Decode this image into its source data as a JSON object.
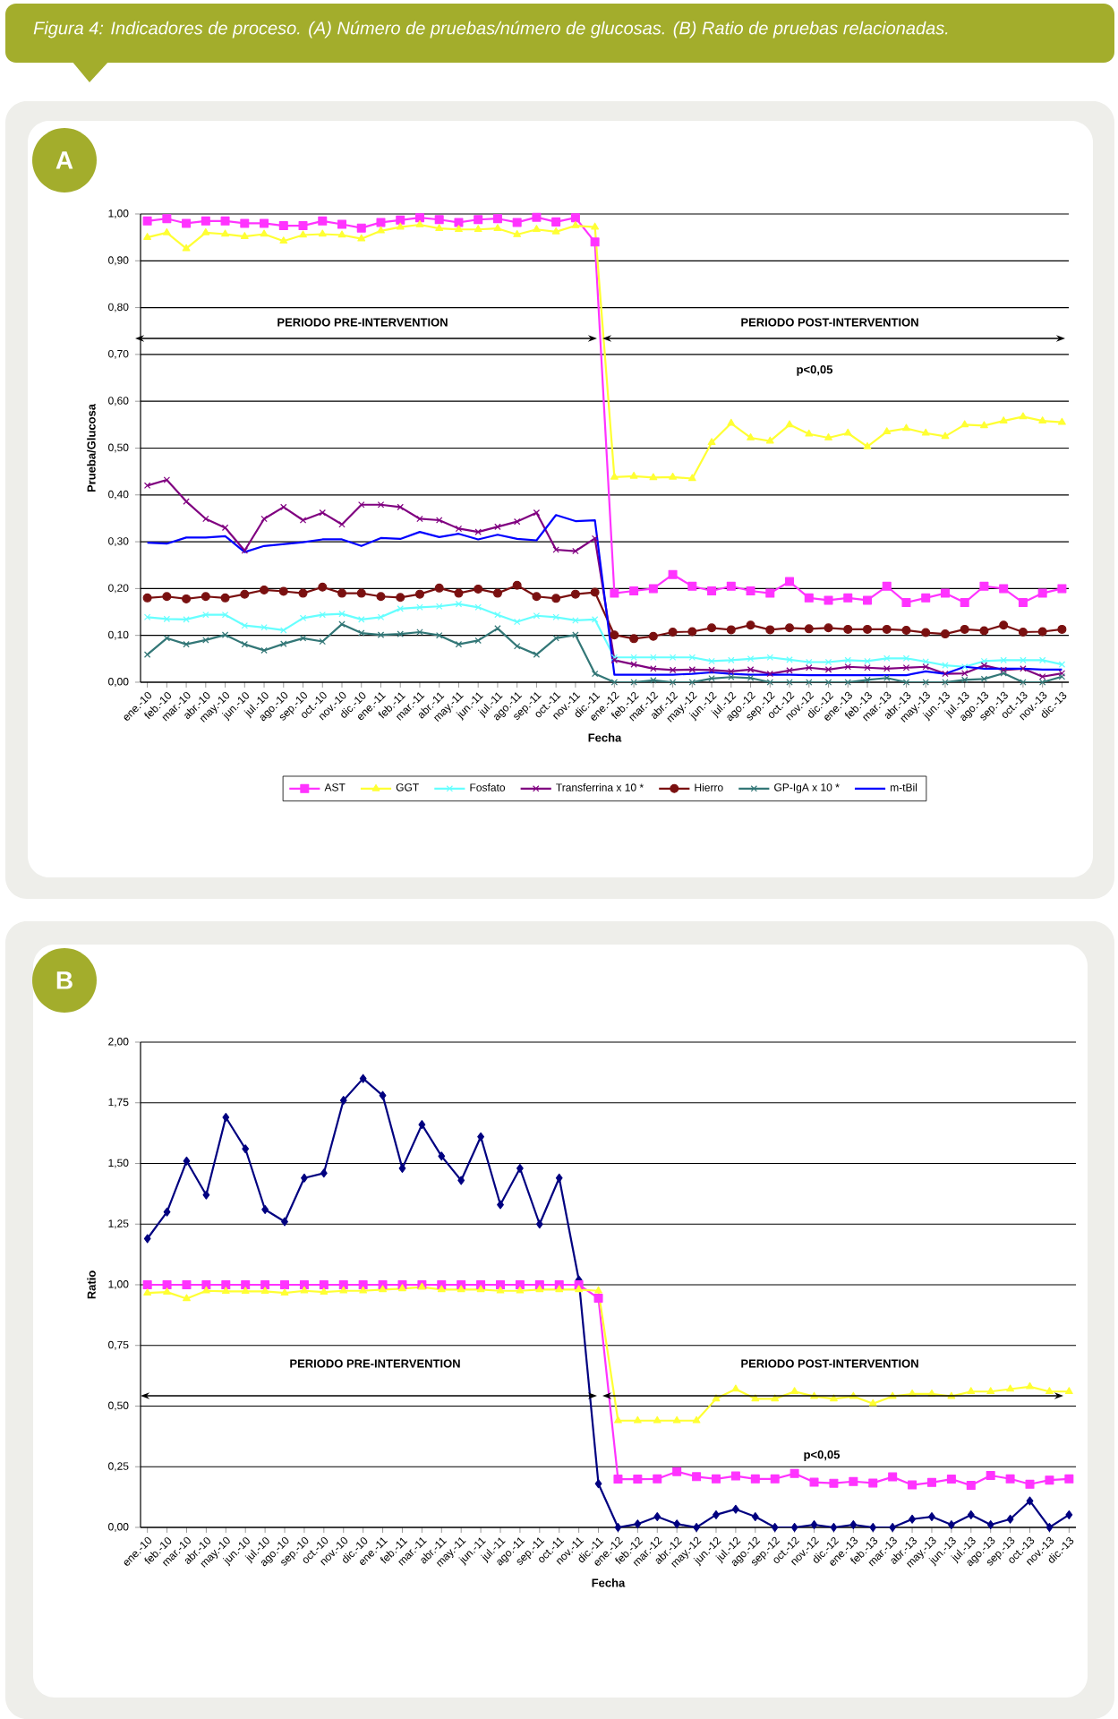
{
  "chart_data": [
    {
      "type": "line",
      "title": "A",
      "xlabel": "Fecha",
      "ylabel": "Prueba/Glucosa",
      "annotations": [
        "Figura 4: Indicadores de proceso. (A) Número de pruebas/número de glucosas. (B) Ratio de pruebas relacionadas.",
        "PERIODO PRE-INTERVENTION",
        "PERIODO POST-INTERVENTION",
        "p<0,05"
      ],
      "categories": [
        "ene.-10",
        "feb.-10",
        "mar.-10",
        "abr.-10",
        "may.-10",
        "jun.-10",
        "jul.-10",
        "ago.-10",
        "sep.-10",
        "oct.-10",
        "nov.-10",
        "dic.-10",
        "ene.-11",
        "feb.-11",
        "mar.-11",
        "abr.-11",
        "may.-11",
        "jun.-11",
        "jul.-11",
        "ago.-11",
        "sep.-11",
        "oct.-11",
        "nov.-11",
        "dic.-11",
        "ene.-12",
        "feb.-12",
        "mar.-12",
        "abr.-12",
        "may.-12",
        "jun.-12",
        "jul.-12",
        "ago.-12",
        "sep.-12",
        "oct.-12",
        "nov.-12",
        "dic.-12",
        "ene.-13",
        "feb.-13",
        "mar.-13",
        "abr.-13",
        "may.-13",
        "jun.-13",
        "jul.-13",
        "ago.-13",
        "sep.-13",
        "oct.-13",
        "nov.-13",
        "dic.-13"
      ],
      "series": [
        {
          "name": "AST",
          "color": "#ff33ff",
          "marker": "square",
          "values": [
            0.985,
            0.99,
            0.98,
            0.985,
            0.985,
            0.98,
            0.98,
            0.975,
            0.975,
            0.985,
            0.978,
            0.97,
            0.982,
            0.987,
            0.992,
            0.988,
            0.982,
            0.988,
            0.99,
            0.982,
            0.993,
            0.983,
            0.992,
            0.94,
            0.19,
            0.195,
            0.2,
            0.23,
            0.205,
            0.195,
            0.205,
            0.195,
            0.19,
            0.215,
            0.18,
            0.175,
            0.18,
            0.175,
            0.205,
            0.17,
            0.18,
            0.19,
            0.17,
            0.205,
            0.2,
            0.17,
            0.19,
            0.2
          ]
        },
        {
          "name": "GGT",
          "color": "#ffff33",
          "marker": "triangle",
          "values": [
            0.95,
            0.96,
            0.926,
            0.96,
            0.957,
            0.952,
            0.957,
            0.942,
            0.955,
            0.957,
            0.955,
            0.947,
            0.964,
            0.972,
            0.977,
            0.969,
            0.967,
            0.967,
            0.969,
            0.956,
            0.967,
            0.962,
            0.975,
            0.972,
            0.438,
            0.44,
            0.437,
            0.438,
            0.435,
            0.512,
            0.553,
            0.522,
            0.515,
            0.55,
            0.53,
            0.522,
            0.532,
            0.503,
            0.535,
            0.542,
            0.532,
            0.525,
            0.55,
            0.548,
            0.558,
            0.567,
            0.558,
            0.555
          ]
        },
        {
          "name": "Fosfato",
          "color": "#66ffff",
          "marker": "cross",
          "values": [
            0.139,
            0.135,
            0.134,
            0.144,
            0.144,
            0.121,
            0.117,
            0.111,
            0.137,
            0.144,
            0.146,
            0.134,
            0.139,
            0.157,
            0.16,
            0.162,
            0.167,
            0.16,
            0.144,
            0.129,
            0.142,
            0.139,
            0.132,
            0.134,
            0.053,
            0.053,
            0.053,
            0.053,
            0.053,
            0.045,
            0.047,
            0.05,
            0.053,
            0.048,
            0.043,
            0.043,
            0.047,
            0.045,
            0.051,
            0.051,
            0.044,
            0.036,
            0.033,
            0.045,
            0.047,
            0.047,
            0.047,
            0.038
          ]
        },
        {
          "name": "Transferrina x 10 *",
          "color": "#800080",
          "marker": "cross",
          "values": [
            0.42,
            0.432,
            0.386,
            0.349,
            0.33,
            0.281,
            0.349,
            0.374,
            0.346,
            0.362,
            0.337,
            0.379,
            0.379,
            0.374,
            0.349,
            0.346,
            0.328,
            0.321,
            0.332,
            0.343,
            0.362,
            0.283,
            0.28,
            0.307,
            0.047,
            0.038,
            0.029,
            0.026,
            0.027,
            0.026,
            0.023,
            0.027,
            0.018,
            0.025,
            0.031,
            0.027,
            0.033,
            0.031,
            0.029,
            0.031,
            0.033,
            0.018,
            0.019,
            0.036,
            0.026,
            0.029,
            0.012,
            0.019
          ]
        },
        {
          "name": "Hierro",
          "color": "#7a1010",
          "marker": "circle",
          "values": [
            0.18,
            0.183,
            0.178,
            0.183,
            0.18,
            0.188,
            0.197,
            0.194,
            0.19,
            0.203,
            0.19,
            0.19,
            0.183,
            0.181,
            0.188,
            0.201,
            0.19,
            0.199,
            0.19,
            0.207,
            0.183,
            0.179,
            0.188,
            0.192,
            0.101,
            0.093,
            0.098,
            0.107,
            0.108,
            0.116,
            0.112,
            0.122,
            0.112,
            0.116,
            0.114,
            0.116,
            0.113,
            0.113,
            0.113,
            0.111,
            0.106,
            0.103,
            0.113,
            0.11,
            0.122,
            0.107,
            0.108,
            0.113
          ]
        },
        {
          "name": "GP-IgA x 10 *",
          "color": "#337777",
          "marker": "cross",
          "values": [
            0.059,
            0.094,
            0.081,
            0.09,
            0.101,
            0.081,
            0.068,
            0.082,
            0.094,
            0.087,
            0.124,
            0.105,
            0.101,
            0.103,
            0.107,
            0.1,
            0.081,
            0.089,
            0.115,
            0.077,
            0.059,
            0.094,
            0.101,
            0.018,
            0.0,
            0.0,
            0.004,
            0.0,
            0.0,
            0.008,
            0.011,
            0.009,
            0.0,
            0.0,
            0.0,
            0.0,
            0.0,
            0.005,
            0.009,
            0.0,
            0.0,
            0.0,
            0.005,
            0.007,
            0.019,
            0.0,
            0.0,
            0.012
          ]
        },
        {
          "name": "m-tBil",
          "color": "#0000ff",
          "marker": "none",
          "values": [
            0.298,
            0.296,
            0.309,
            0.309,
            0.312,
            0.278,
            0.291,
            0.295,
            0.299,
            0.305,
            0.305,
            0.291,
            0.308,
            0.306,
            0.321,
            0.31,
            0.317,
            0.305,
            0.315,
            0.306,
            0.303,
            0.357,
            0.344,
            0.346,
            0.016,
            0.016,
            0.016,
            0.016,
            0.018,
            0.021,
            0.018,
            0.016,
            0.016,
            0.016,
            0.015,
            0.015,
            0.015,
            0.015,
            0.015,
            0.015,
            0.023,
            0.018,
            0.033,
            0.029,
            0.029,
            0.029,
            0.027,
            0.027
          ]
        }
      ],
      "ylim": [
        0,
        1
      ],
      "yticks": [
        {
          "value": 0,
          "label": "0,00"
        },
        {
          "value": 0.1,
          "label": "0,10"
        },
        {
          "value": 0.2,
          "label": "0,20"
        },
        {
          "value": 0.3,
          "label": "0,30"
        },
        {
          "value": 0.4,
          "label": "0,40"
        },
        {
          "value": 0.5,
          "label": "0,50"
        },
        {
          "value": 0.6,
          "label": "0,60"
        },
        {
          "value": 0.7,
          "label": "0,70"
        },
        {
          "value": 0.8,
          "label": "0,80"
        },
        {
          "value": 0.9,
          "label": "0,90"
        },
        {
          "value": 1,
          "label": "1,00"
        }
      ],
      "grid": "y",
      "legend": "bottom"
    },
    {
      "type": "line",
      "title": "B",
      "xlabel": "Fecha",
      "ylabel": "Ratio",
      "annotations": [
        "PERIODO PRE-INTERVENTION",
        "PERIODO POST-INTERVENTION",
        "p<0,05"
      ],
      "categories": [
        "ene.-10",
        "feb.-10",
        "mar.-10",
        "abr.-10",
        "may.-10",
        "jun.-10",
        "jul.-10",
        "ago.-10",
        "sep.-10",
        "oct.-10",
        "nov.-10",
        "dic.-10",
        "ene.-11",
        "feb.-11",
        "mar.-11",
        "abr.-11",
        "may.-11",
        "jun.-11",
        "jul.-11",
        "ago.-11",
        "sep.-11",
        "oct.-11",
        "nov.-11",
        "dic.-11",
        "ene.-12",
        "feb.-12",
        "mar.-12",
        "abr.-12",
        "may.-12",
        "jun.-12",
        "jul.-12",
        "ago.-12",
        "sep.-12",
        "oct.-12",
        "nov.-12",
        "dic.-12",
        "ene.-13",
        "feb.-13",
        "mar.-13",
        "abr.-13",
        "may.-13",
        "jun.-13",
        "jul.-13",
        "ago.-13",
        "sep.-13",
        "oct.-13",
        "nov.-13",
        "dic.-13"
      ],
      "series": [
        {
          "color": "#000080",
          "marker": "diamond",
          "values": [
            1.19,
            1.3,
            1.51,
            1.37,
            1.69,
            1.56,
            1.31,
            1.26,
            1.44,
            1.46,
            1.76,
            1.85,
            1.78,
            1.48,
            1.66,
            1.53,
            1.43,
            1.61,
            1.33,
            1.48,
            1.25,
            1.44,
            1.02,
            0.18,
            0.0,
            0.014,
            0.044,
            0.014,
            0.0,
            0.052,
            0.075,
            0.044,
            0.0,
            0.0,
            0.011,
            0.0,
            0.011,
            0.0,
            0.0,
            0.034,
            0.044,
            0.011,
            0.052,
            0.011,
            0.034,
            0.109,
            0.0,
            0.052
          ]
        },
        {
          "color": "#ff33ff",
          "marker": "square",
          "values": [
            1.0,
            1.0,
            1.0,
            1.0,
            1.0,
            1.0,
            1.0,
            1.0,
            1.0,
            1.0,
            1.0,
            1.0,
            1.0,
            1.0,
            1.0,
            1.0,
            1.0,
            1.0,
            1.0,
            1.0,
            1.0,
            1.0,
            1.0,
            0.945,
            0.199,
            0.199,
            0.2,
            0.23,
            0.209,
            0.2,
            0.212,
            0.2,
            0.2,
            0.222,
            0.186,
            0.182,
            0.189,
            0.183,
            0.208,
            0.175,
            0.185,
            0.199,
            0.173,
            0.214,
            0.2,
            0.178,
            0.195,
            0.2
          ]
        },
        {
          "color": "#ffff33",
          "marker": "triangle",
          "values": [
            0.966,
            0.97,
            0.943,
            0.975,
            0.973,
            0.973,
            0.973,
            0.966,
            0.975,
            0.97,
            0.975,
            0.975,
            0.98,
            0.984,
            0.99,
            0.98,
            0.98,
            0.98,
            0.975,
            0.975,
            0.98,
            0.98,
            0.98,
            0.975,
            0.44,
            0.44,
            0.44,
            0.44,
            0.44,
            0.53,
            0.57,
            0.53,
            0.53,
            0.56,
            0.54,
            0.53,
            0.54,
            0.51,
            0.54,
            0.55,
            0.55,
            0.54,
            0.56,
            0.56,
            0.57,
            0.58,
            0.56,
            0.56
          ]
        }
      ],
      "ylim": [
        0,
        2
      ],
      "yticks": [
        {
          "value": 0,
          "label": "0,00"
        },
        {
          "value": 0.25,
          "label": "0,25"
        },
        {
          "value": 0.5,
          "label": "0,50"
        },
        {
          "value": 0.75,
          "label": "0,75"
        },
        {
          "value": 1,
          "label": "1,00"
        },
        {
          "value": 1.25,
          "label": "1,25"
        },
        {
          "value": 1.5,
          "label": "1,50"
        },
        {
          "value": 1.75,
          "label": "1,75"
        },
        {
          "value": 2,
          "label": "2,00"
        }
      ],
      "grid": "y",
      "legend": false
    }
  ]
}
